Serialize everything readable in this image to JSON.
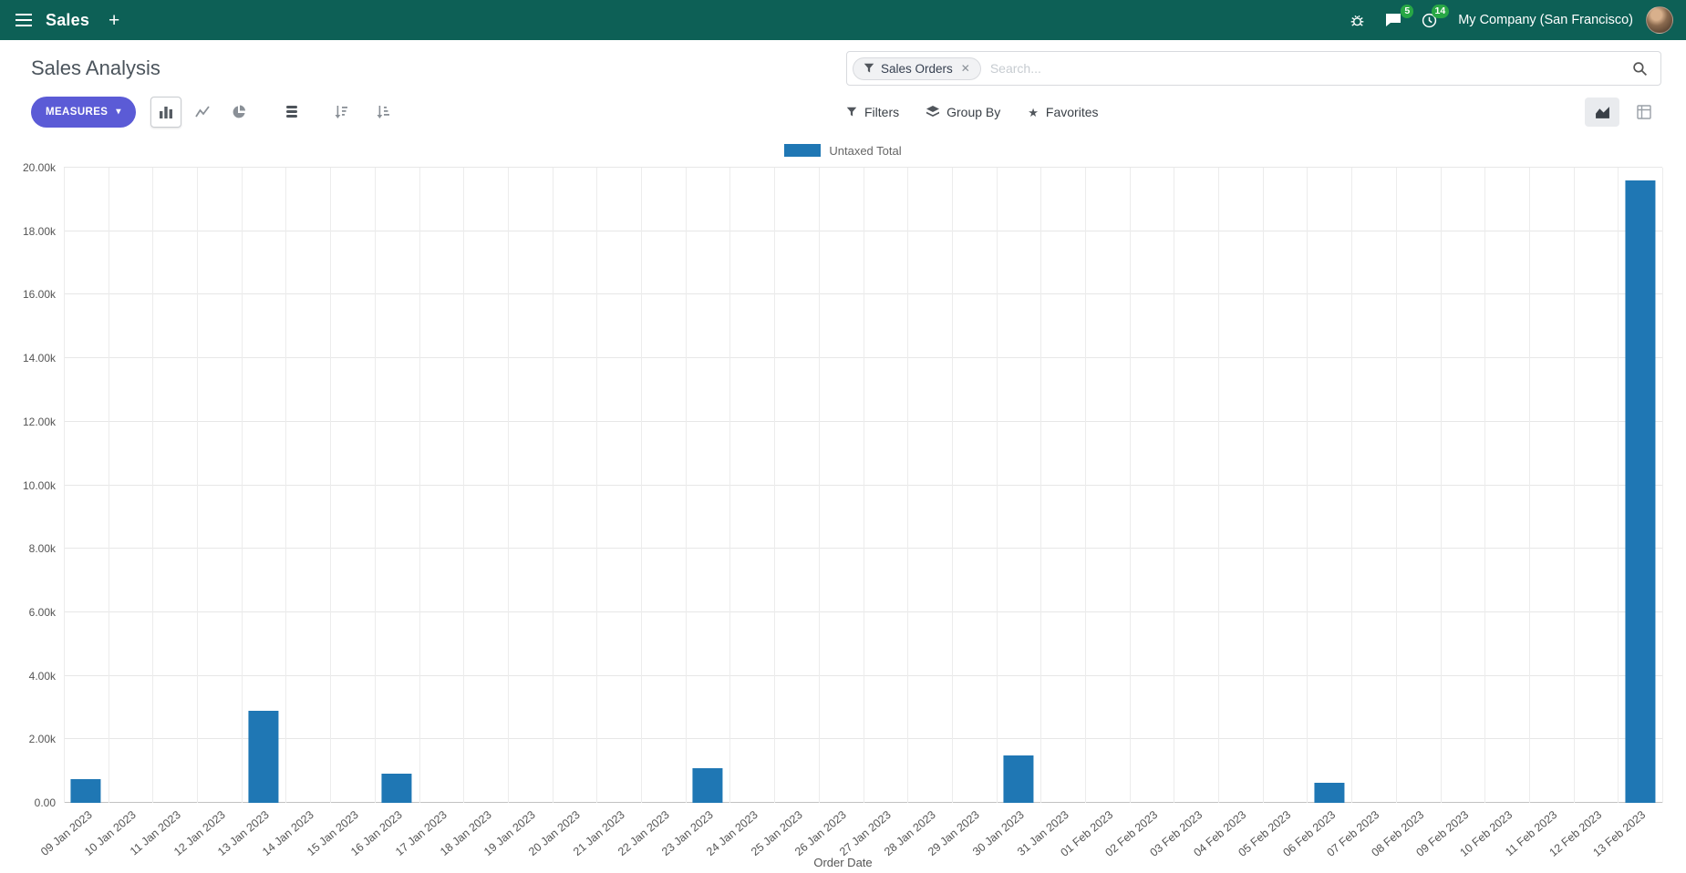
{
  "navbar": {
    "app_name": "Sales",
    "company": "My Company (San Francisco)",
    "messages_badge": "5",
    "activities_badge": "14"
  },
  "icons": {
    "plus": "+",
    "caret_down": "▾",
    "star": "★",
    "remove_facet": "✕"
  },
  "control_panel": {
    "title": "Sales Analysis",
    "measures_label": "MEASURES",
    "search": {
      "facet": "Sales Orders",
      "placeholder": "Search..."
    },
    "filters_label": "Filters",
    "group_by_label": "Group By",
    "favorites_label": "Favorites"
  },
  "chart_data": {
    "type": "bar",
    "title": "",
    "legend": [
      "Untaxed Total"
    ],
    "legend_position": "top-center",
    "grid": true,
    "xlabel": "Order Date",
    "ylabel": "",
    "ylim": [
      0,
      20000
    ],
    "yticks": [
      0,
      2000,
      4000,
      6000,
      8000,
      10000,
      12000,
      14000,
      16000,
      18000,
      20000
    ],
    "ytick_labels": [
      "0.00",
      "2.00k",
      "4.00k",
      "6.00k",
      "8.00k",
      "10.00k",
      "12.00k",
      "14.00k",
      "16.00k",
      "18.00k",
      "20.00k"
    ],
    "categories": [
      "09 Jan 2023",
      "10 Jan 2023",
      "11 Jan 2023",
      "12 Jan 2023",
      "13 Jan 2023",
      "14 Jan 2023",
      "15 Jan 2023",
      "16 Jan 2023",
      "17 Jan 2023",
      "18 Jan 2023",
      "19 Jan 2023",
      "20 Jan 2023",
      "21 Jan 2023",
      "22 Jan 2023",
      "23 Jan 2023",
      "24 Jan 2023",
      "25 Jan 2023",
      "26 Jan 2023",
      "27 Jan 2023",
      "28 Jan 2023",
      "29 Jan 2023",
      "30 Jan 2023",
      "31 Jan 2023",
      "01 Feb 2023",
      "02 Feb 2023",
      "03 Feb 2023",
      "04 Feb 2023",
      "05 Feb 2023",
      "06 Feb 2023",
      "07 Feb 2023",
      "08 Feb 2023",
      "09 Feb 2023",
      "10 Feb 2023",
      "11 Feb 2023",
      "12 Feb 2023",
      "13 Feb 2023"
    ],
    "series": [
      {
        "name": "Untaxed Total",
        "color": "#1f77b4",
        "values": [
          750,
          0,
          0,
          0,
          2900,
          0,
          0,
          920,
          0,
          0,
          0,
          0,
          0,
          0,
          1080,
          0,
          0,
          0,
          0,
          0,
          0,
          1500,
          0,
          0,
          0,
          0,
          0,
          0,
          620,
          0,
          0,
          0,
          0,
          0,
          0,
          19600
        ]
      }
    ]
  },
  "colors": {
    "navbar_bg": "#0d6056",
    "primary_button": "#5b5bd6",
    "bar": "#1f77b4",
    "badge": "#28a745"
  }
}
